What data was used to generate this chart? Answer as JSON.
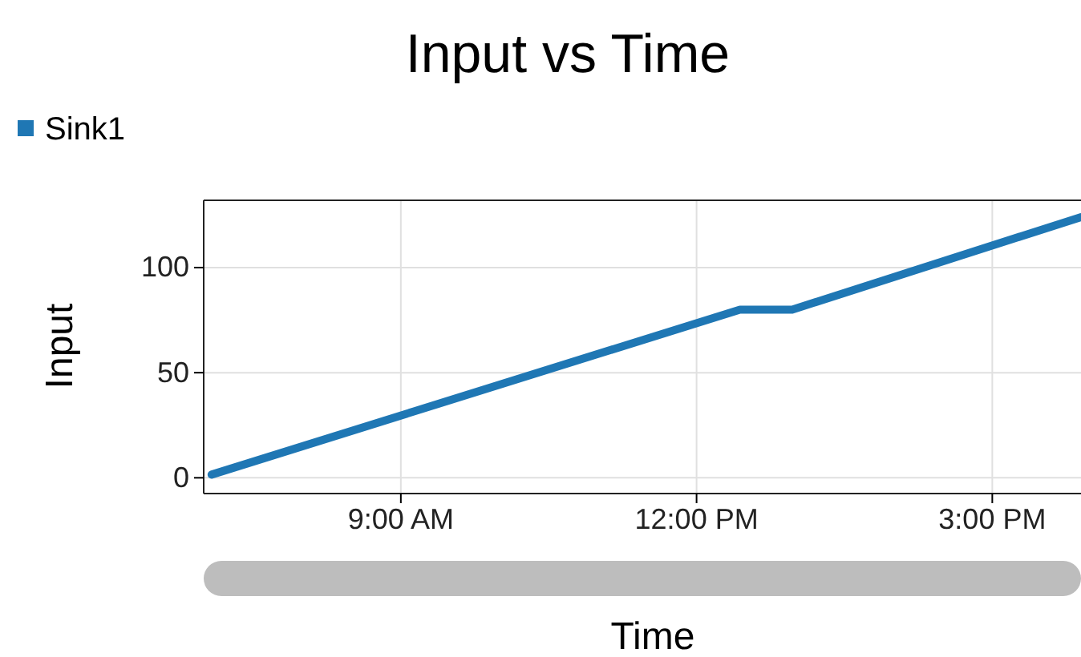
{
  "chart_data": {
    "type": "line",
    "title": "Input vs Time",
    "xlabel": "Time",
    "ylabel": "Input",
    "xlim": [
      7.0,
      15.9
    ],
    "xticks": [
      {
        "value": 9,
        "label": "9:00 AM"
      },
      {
        "value": 12,
        "label": "12:00 PM"
      },
      {
        "value": 15,
        "label": "3:00 PM"
      }
    ],
    "ylim": [
      -7.5,
      132
    ],
    "yticks": [
      0,
      50,
      100
    ],
    "grid": true,
    "legend": "top left",
    "series": [
      {
        "name": "Sink1",
        "color": "#1f77b4",
        "x": [
          7.08,
          12.44,
          12.97,
          15.9
        ],
        "values": [
          1.5,
          80,
          80,
          124
        ]
      }
    ]
  }
}
